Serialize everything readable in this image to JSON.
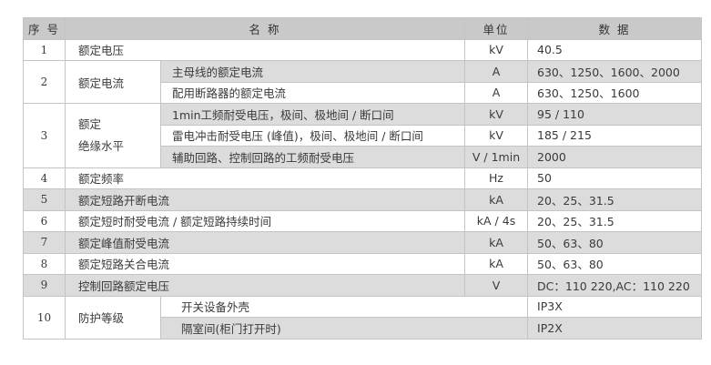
{
  "header": {
    "seq": "序 号",
    "name": "名      称",
    "unit": "单位",
    "data": "数  据"
  },
  "rows": [
    {
      "seq": "1",
      "name": "额定电压",
      "unit": "kV",
      "data": "40.5"
    },
    {
      "seq": "2",
      "name": "额定电流",
      "sub": [
        {
          "name": "主母线的额定电流",
          "unit": "A",
          "data": "630、1250、1600、2000"
        },
        {
          "name": "配用断路器的额定电流",
          "unit": "A",
          "data": "630、1250、1600"
        }
      ]
    },
    {
      "seq": "3",
      "name_line1": "额定",
      "name_line2": "绝缘水平",
      "sub": [
        {
          "name": "1min工频耐受电压，极间、极地间 / 断口间",
          "unit": "kV",
          "data": "95 / 110"
        },
        {
          "name": "雷电冲击耐受电压 (峰值)，极间、极地间 / 断口间",
          "unit": "kV",
          "data": "185 / 215"
        },
        {
          "name": "辅助回路、控制回路的工频耐受电压",
          "unit": "V / 1min",
          "data": "2000"
        }
      ]
    },
    {
      "seq": "4",
      "name": "额定频率",
      "unit": "Hz",
      "data": "50"
    },
    {
      "seq": "5",
      "name": "额定短路开断电流",
      "unit": "kA",
      "data": "20、25、31.5"
    },
    {
      "seq": "6",
      "name": "额定短时耐受电流 / 额定短路持续时间",
      "unit": "kA / 4s",
      "data": "20、25、31.5"
    },
    {
      "seq": "7",
      "name": "额定峰值耐受电流",
      "unit": "kA",
      "data": "50、63、80"
    },
    {
      "seq": "8",
      "name": "额定短路关合电流",
      "unit": "kA",
      "data": "50、63、80"
    },
    {
      "seq": "9",
      "name": "控制回路额定电压",
      "unit": "V",
      "data": "DC：110 220,AC：110 220"
    },
    {
      "seq": "10",
      "name": "防护等级",
      "sub": [
        {
          "name": "开关设备外壳",
          "data": "IP3X"
        },
        {
          "name": "隔室间(柜门打开时)",
          "data": "IP2X"
        }
      ]
    }
  ],
  "colors": {
    "header_bg": "#c9c9c9",
    "stripe_bg": "#dcdcdc",
    "border": "#c4c4c4"
  }
}
